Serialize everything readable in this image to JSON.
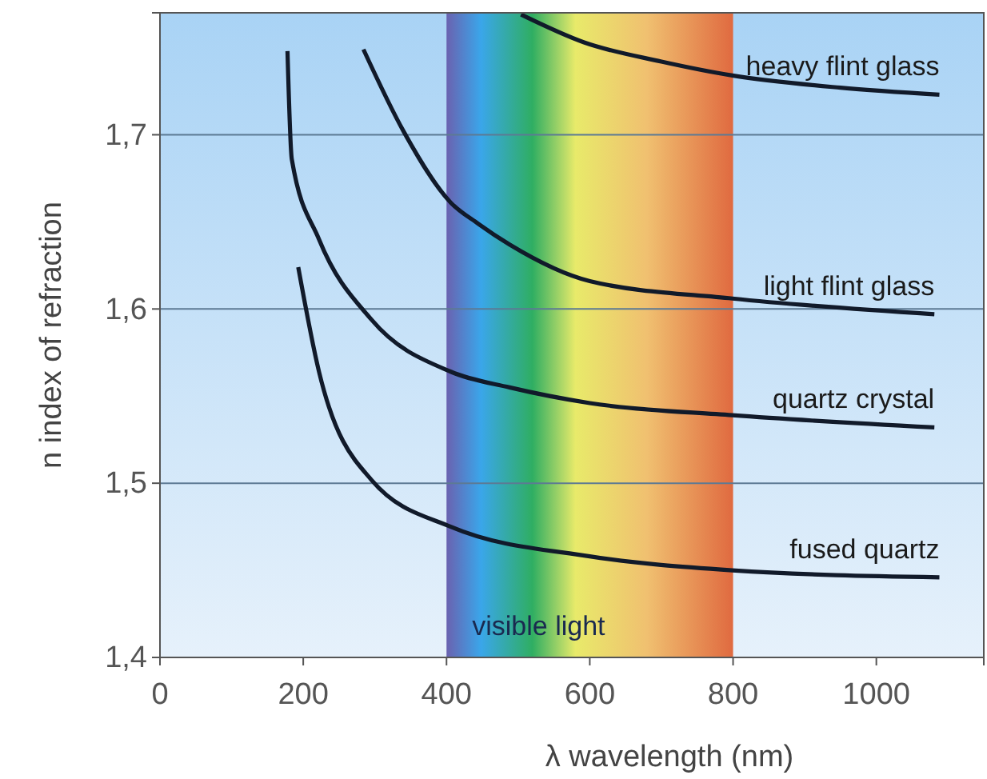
{
  "chart_data": {
    "type": "line",
    "xlabel": "λ wavelength (nm)",
    "ylabel": "n index of refraction",
    "xlim": [
      0,
      1150
    ],
    "ylim": [
      1.4,
      1.77
    ],
    "xticks": [
      0,
      200,
      400,
      600,
      800,
      1000
    ],
    "yticks": [
      {
        "value": 1.4,
        "label": "1,4"
      },
      {
        "value": 1.5,
        "label": "1,5"
      },
      {
        "value": 1.6,
        "label": "1,6"
      },
      {
        "value": 1.7,
        "label": "1,7"
      }
    ],
    "grid": "y",
    "marker": "none",
    "line_style": "solid",
    "bands": [
      {
        "axis": "x",
        "from": 400,
        "to": 800,
        "label": "visible light"
      }
    ],
    "series": [
      {
        "name": "heavy flint glass",
        "color": "#111a2a",
        "x": [
          504,
          592,
          700,
          799,
          950,
          1088
        ],
        "values": [
          1.769,
          1.753,
          1.742,
          1.734,
          1.727,
          1.723
        ]
      },
      {
        "name": "light flint glass",
        "color": "#111a2a",
        "x": [
          284,
          340,
          406,
          444,
          488,
          600,
          799,
          1081
        ],
        "values": [
          1.749,
          1.702,
          1.661,
          1.649,
          1.637,
          1.616,
          1.606,
          1.597
        ]
      },
      {
        "name": "quartz crystal",
        "color": "#111a2a",
        "x": [
          178,
          184,
          222,
          295,
          406,
          488,
          600,
          799,
          1081
        ],
        "values": [
          1.748,
          1.686,
          1.64,
          1.594,
          1.564,
          1.555,
          1.546,
          1.539,
          1.532
        ]
      },
      {
        "name": "fused quartz",
        "color": "#111a2a",
        "x": [
          193,
          222,
          295,
          406,
          600,
          799,
          1088
        ],
        "values": [
          1.624,
          1.564,
          1.502,
          1.475,
          1.458,
          1.45,
          1.446
        ]
      }
    ]
  }
}
